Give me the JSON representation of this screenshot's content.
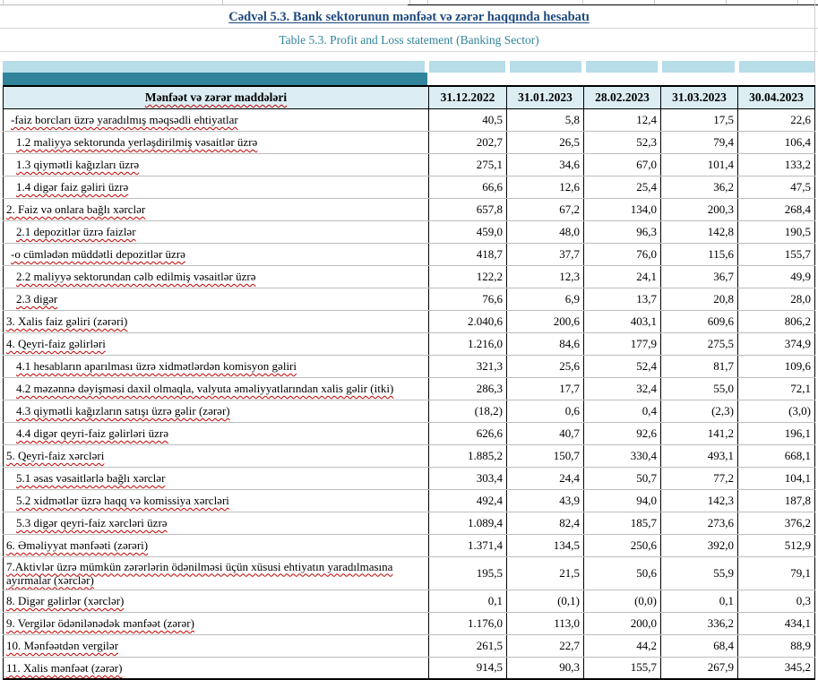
{
  "title": "Cədvəl 5.3. Bank sektorunun mənfəət və zərər haqqında hesabatı",
  "subtitle": "Table 5.3. Profit and Loss statement (Banking Sector)",
  "colors": {
    "title_blue": "#1F497D",
    "subtitle_teal": "#31849B",
    "band_light": "#B6DDE8",
    "band_teal": "#31849B",
    "header_bg": "#DCEEF4",
    "squiggle_red": "#C00000"
  },
  "table": {
    "header": {
      "label": "Mənfəət və zərər maddələri",
      "dates": [
        "31.12.2022",
        "31.01.2023",
        "28.02.2023",
        "31.03.2023",
        "30.04.2023"
      ]
    },
    "rows": [
      {
        "indent": "dash",
        "label": "-faiz borcları üzrə yaradılmış məqsədli ehtiyatlar",
        "values": [
          "40,5",
          "5,8",
          "12,4",
          "17,5",
          "22,6"
        ]
      },
      {
        "indent": "sub",
        "label": "1.2 maliyyə sektorunda yerləşdirilmiş vəsaitlər üzrə",
        "values": [
          "202,7",
          "26,5",
          "52,3",
          "79,4",
          "106,4"
        ]
      },
      {
        "indent": "sub",
        "label": "1.3 qiymətli kağızları üzrə",
        "values": [
          "275,1",
          "34,6",
          "67,0",
          "101,4",
          "133,2"
        ]
      },
      {
        "indent": "sub",
        "label": "1.4 digər faiz gəliri üzrə",
        "values": [
          "66,6",
          "12,6",
          "25,4",
          "36,2",
          "47,5"
        ]
      },
      {
        "indent": "main",
        "label": "2. Faiz və onlara bağlı xərclər",
        "values": [
          "657,8",
          "67,2",
          "134,0",
          "200,3",
          "268,4"
        ]
      },
      {
        "indent": "sub",
        "label": "2.1 depozitlər üzrə faizlər",
        "values": [
          "459,0",
          "48,0",
          "96,3",
          "142,8",
          "190,5"
        ]
      },
      {
        "indent": "dash",
        "label": "-o cümlədən müddətli depozitlər üzrə",
        "values": [
          "418,7",
          "37,7",
          "76,0",
          "115,6",
          "155,7"
        ]
      },
      {
        "indent": "sub",
        "label": "2.2 maliyyə sektorundan cəlb edilmiş vəsaitlər üzrə",
        "values": [
          "122,2",
          "12,3",
          "24,1",
          "36,7",
          "49,9"
        ]
      },
      {
        "indent": "sub",
        "label": "2.3 digər",
        "values": [
          "76,6",
          "6,9",
          "13,7",
          "20,8",
          "28,0"
        ]
      },
      {
        "indent": "main",
        "label": "3. Xalis faiz gəliri (zərəri)",
        "values": [
          "2.040,6",
          "200,6",
          "403,1",
          "609,6",
          "806,2"
        ]
      },
      {
        "indent": "main",
        "label": "4. Qeyri-faiz gəlirləri",
        "values": [
          "1.216,0",
          "84,6",
          "177,9",
          "275,5",
          "374,9"
        ]
      },
      {
        "indent": "sub",
        "label": "4.1 hesabların aparılması üzrə xidmətlərdən komisyon gəliri",
        "values": [
          "321,3",
          "25,6",
          "52,4",
          "81,7",
          "109,6"
        ]
      },
      {
        "indent": "sub",
        "label": "4.2 məzənnə dəyişməsi daxil olmaqla, valyuta əməliyyatlarından xalis gəlir (itki)",
        "values": [
          "286,3",
          "17,7",
          "32,4",
          "55,0",
          "72,1"
        ]
      },
      {
        "indent": "sub",
        "label": "4.3 qiymətli kağızların satışı üzrə gəlir (zərər)",
        "values": [
          "(18,2)",
          "0,6",
          "0,4",
          "(2,3)",
          "(3,0)"
        ]
      },
      {
        "indent": "sub",
        "label": "4.4 digər qeyri-faiz gəlirləri üzrə",
        "values": [
          "626,6",
          "40,7",
          "92,6",
          "141,2",
          "196,1"
        ]
      },
      {
        "indent": "main",
        "label": "5. Qeyri-faiz xərcləri",
        "values": [
          "1.885,2",
          "150,7",
          "330,4",
          "493,1",
          "668,1"
        ]
      },
      {
        "indent": "sub",
        "label": "5.1 əsas vəsaitlərlə bağlı xərclər",
        "values": [
          "303,4",
          "24,4",
          "50,7",
          "77,2",
          "104,1"
        ]
      },
      {
        "indent": "sub",
        "label": "5.2 xidmətlər üzrə haqq və komissiya xərcləri",
        "values": [
          "492,4",
          "43,9",
          "94,0",
          "142,3",
          "187,8"
        ]
      },
      {
        "indent": "sub",
        "label": "5.3 digər qeyri-faiz xərcləri üzrə",
        "values": [
          "1.089,4",
          "82,4",
          "185,7",
          "273,6",
          "376,2"
        ]
      },
      {
        "indent": "main",
        "label": "6. Əməliyyat mənfəəti (zərəri)",
        "values": [
          "1.371,4",
          "134,5",
          "250,6",
          "392,0",
          "512,9"
        ]
      },
      {
        "indent": "main",
        "tall": true,
        "label": "7.Aktivlər üzrə mümkün zərərlərin ödənilməsi üçün xüsusi ehtiyatın yaradılmasına ayırmalar (xərclər)",
        "values": [
          "195,5",
          "21,5",
          "50,6",
          "55,9",
          "79,1"
        ]
      },
      {
        "indent": "main",
        "label": "8. Digər gəlirlər (xərclər)",
        "values": [
          "0,1",
          "(0,1)",
          "(0,0)",
          "0,1",
          "0,3"
        ]
      },
      {
        "indent": "main",
        "label": "9. Vergilər ödənilənədək mənfəət (zərər)",
        "values": [
          "1.176,0",
          "113,0",
          "200,0",
          "336,2",
          "434,1"
        ]
      },
      {
        "indent": "main",
        "label": "10. Mənfəətdən vergilər",
        "values": [
          "261,5",
          "22,7",
          "44,2",
          "68,4",
          "88,9"
        ]
      },
      {
        "indent": "main",
        "label": "11. Xalis mənfəət (zərər)",
        "values": [
          "914,5",
          "90,3",
          "155,7",
          "267,9",
          "345,2"
        ]
      }
    ]
  }
}
